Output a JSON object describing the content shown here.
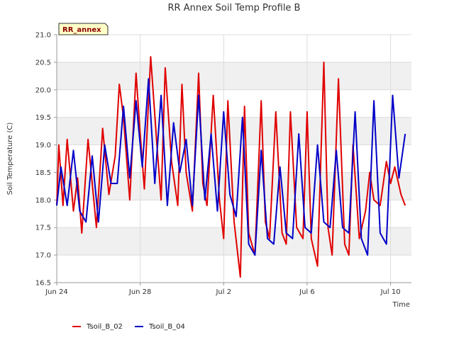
{
  "chart_data": {
    "type": "line",
    "title": "RR Annex Soil Temp Profile B",
    "xlabel": "Time",
    "ylabel": "Soil Temperature (C)",
    "badge": "RR_annex",
    "xlim_days": [
      0,
      17
    ],
    "x_ticks": [
      {
        "day": 0,
        "label": "Jun 24"
      },
      {
        "day": 4,
        "label": "Jun 28"
      },
      {
        "day": 8,
        "label": "Jul 2"
      },
      {
        "day": 12,
        "label": "Jul 6"
      },
      {
        "day": 16,
        "label": "Jul 10"
      }
    ],
    "ylim": [
      16.5,
      21.0
    ],
    "y_ticks": [
      16.5,
      17.0,
      17.5,
      18.0,
      18.5,
      19.0,
      19.5,
      20.0,
      20.5,
      21.0
    ],
    "grid": true,
    "band_colors": [
      "#f0f0f0",
      "#ffffff"
    ],
    "legend_position": "bottom",
    "series": [
      {
        "name": "Tsoil_B_02",
        "color": "#e00000",
        "x": [
          0.0,
          0.1,
          0.3,
          0.5,
          0.8,
          1.0,
          1.2,
          1.5,
          1.6,
          1.9,
          2.2,
          2.5,
          2.8,
          3.0,
          3.2,
          3.5,
          3.8,
          4.0,
          4.2,
          4.5,
          4.8,
          5.0,
          5.2,
          5.5,
          5.8,
          6.0,
          6.2,
          6.5,
          6.8,
          7.0,
          7.2,
          7.5,
          7.8,
          8.0,
          8.2,
          8.5,
          8.8,
          9.0,
          9.2,
          9.5,
          9.8,
          10.0,
          10.2,
          10.5,
          10.8,
          11.0,
          11.2,
          11.5,
          11.8,
          12.0,
          12.2,
          12.5,
          12.8,
          13.0,
          13.2,
          13.5,
          13.8,
          14.0,
          14.2,
          14.5,
          14.8,
          15.0,
          15.2,
          15.5,
          15.8,
          16.0,
          16.2,
          16.5,
          16.7
        ],
        "y": [
          17.9,
          19.0,
          17.9,
          19.1,
          17.8,
          18.4,
          17.4,
          19.1,
          18.7,
          17.5,
          19.3,
          18.1,
          18.8,
          20.1,
          19.5,
          18.0,
          20.3,
          19.2,
          18.2,
          20.6,
          19.0,
          18.0,
          20.4,
          18.7,
          17.9,
          20.1,
          18.5,
          17.8,
          20.3,
          18.3,
          17.9,
          19.9,
          18.0,
          17.3,
          19.8,
          17.6,
          16.6,
          19.7,
          17.4,
          17.0,
          19.8,
          17.6,
          17.3,
          19.6,
          17.4,
          17.2,
          19.6,
          17.5,
          17.3,
          19.6,
          17.3,
          16.8,
          20.5,
          17.5,
          17.0,
          20.2,
          17.2,
          17.0,
          19.0,
          17.3,
          17.8,
          18.5,
          18.0,
          17.9,
          18.7,
          18.3,
          18.6,
          18.1,
          17.9
        ],
        "note_unused": true
      },
      {
        "name": "Tsoil_B_04",
        "color": "#0000c8",
        "x": [
          0.0,
          0.2,
          0.5,
          0.8,
          1.1,
          1.4,
          1.7,
          2.0,
          2.3,
          2.6,
          2.9,
          3.2,
          3.5,
          3.8,
          4.1,
          4.4,
          4.7,
          5.0,
          5.3,
          5.6,
          5.9,
          6.2,
          6.5,
          6.8,
          7.1,
          7.4,
          7.7,
          8.0,
          8.3,
          8.6,
          8.9,
          9.2,
          9.5,
          9.8,
          10.1,
          10.4,
          10.7,
          11.0,
          11.3,
          11.6,
          11.9,
          12.2,
          12.5,
          12.8,
          13.1,
          13.4,
          13.7,
          14.0,
          14.3,
          14.6,
          14.9,
          15.2,
          15.5,
          15.8,
          16.1,
          16.4,
          16.7
        ],
        "y": [
          17.9,
          18.6,
          17.9,
          18.9,
          17.8,
          17.6,
          18.8,
          17.6,
          19.0,
          18.3,
          18.3,
          19.7,
          18.4,
          19.8,
          18.6,
          20.2,
          18.3,
          19.9,
          17.9,
          19.4,
          18.5,
          19.1,
          17.9,
          19.9,
          18.0,
          19.2,
          17.8,
          19.6,
          18.1,
          17.7,
          19.5,
          17.2,
          17.0,
          18.9,
          17.3,
          17.2,
          18.6,
          17.4,
          17.3,
          19.2,
          17.5,
          17.4,
          19.0,
          17.6,
          17.5,
          18.9,
          17.5,
          17.4,
          19.6,
          17.3,
          17.0,
          19.8,
          17.4,
          17.2,
          19.9,
          18.4,
          19.2
        ],
        "note_unused": true
      }
    ]
  }
}
